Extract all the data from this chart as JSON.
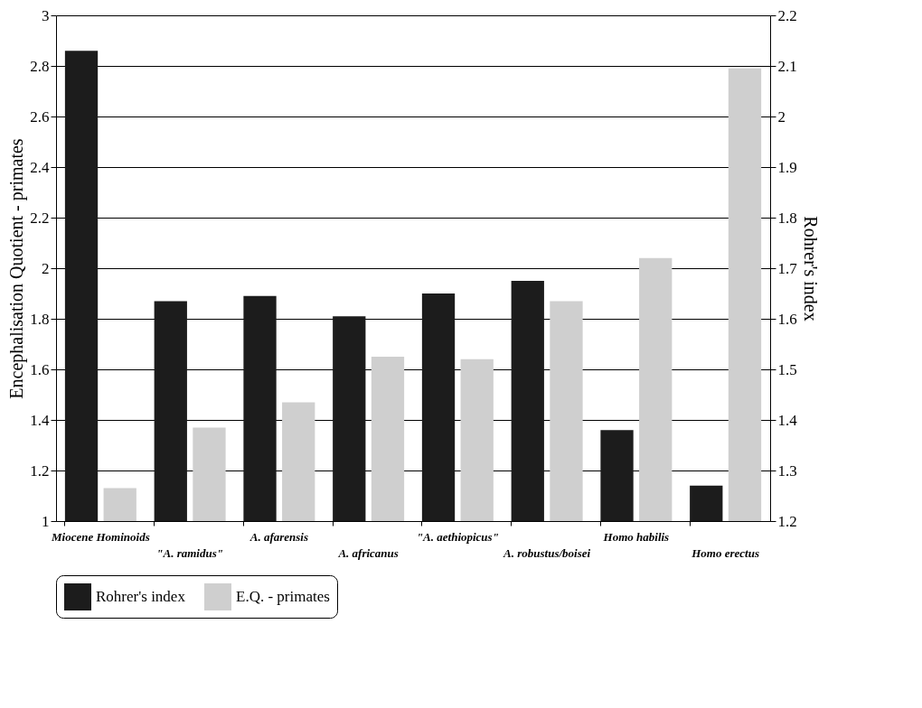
{
  "chart_data": {
    "type": "bar",
    "categories": [
      "Miocene Hominoids",
      "\"A. ramidus\"",
      "A. afarensis",
      "A. africanus",
      "\"A. aethiopicus\"",
      "A. robustus/boisei",
      "Homo habilis",
      "Homo erectus"
    ],
    "series": [
      {
        "name": "Rohrer's index",
        "color": "#1c1c1c",
        "axis": "y2",
        "values": [
          2.13,
          1.635,
          1.645,
          1.605,
          1.65,
          1.675,
          1.38,
          1.27
        ]
      },
      {
        "name": "E.Q. - primates",
        "color": "#cfcfcf",
        "values": [
          1.13,
          1.37,
          1.47,
          1.65,
          1.64,
          1.87,
          2.04,
          2.79
        ]
      }
    ],
    "ylabel": "Encephalisation Quotient - primates",
    "y2label": "Rohrer's index",
    "ylim": [
      1,
      3
    ],
    "yticks": [
      1,
      1.2,
      1.4,
      1.6,
      1.8,
      2,
      2.2,
      2.4,
      2.6,
      2.8,
      3
    ],
    "y2lim": [
      1.2,
      2.2
    ],
    "y2ticks": [
      1.2,
      1.3,
      1.4,
      1.5,
      1.6,
      1.7,
      1.8,
      1.9,
      2,
      2.1,
      2.2
    ],
    "grid": "y",
    "legend": "bottom"
  }
}
